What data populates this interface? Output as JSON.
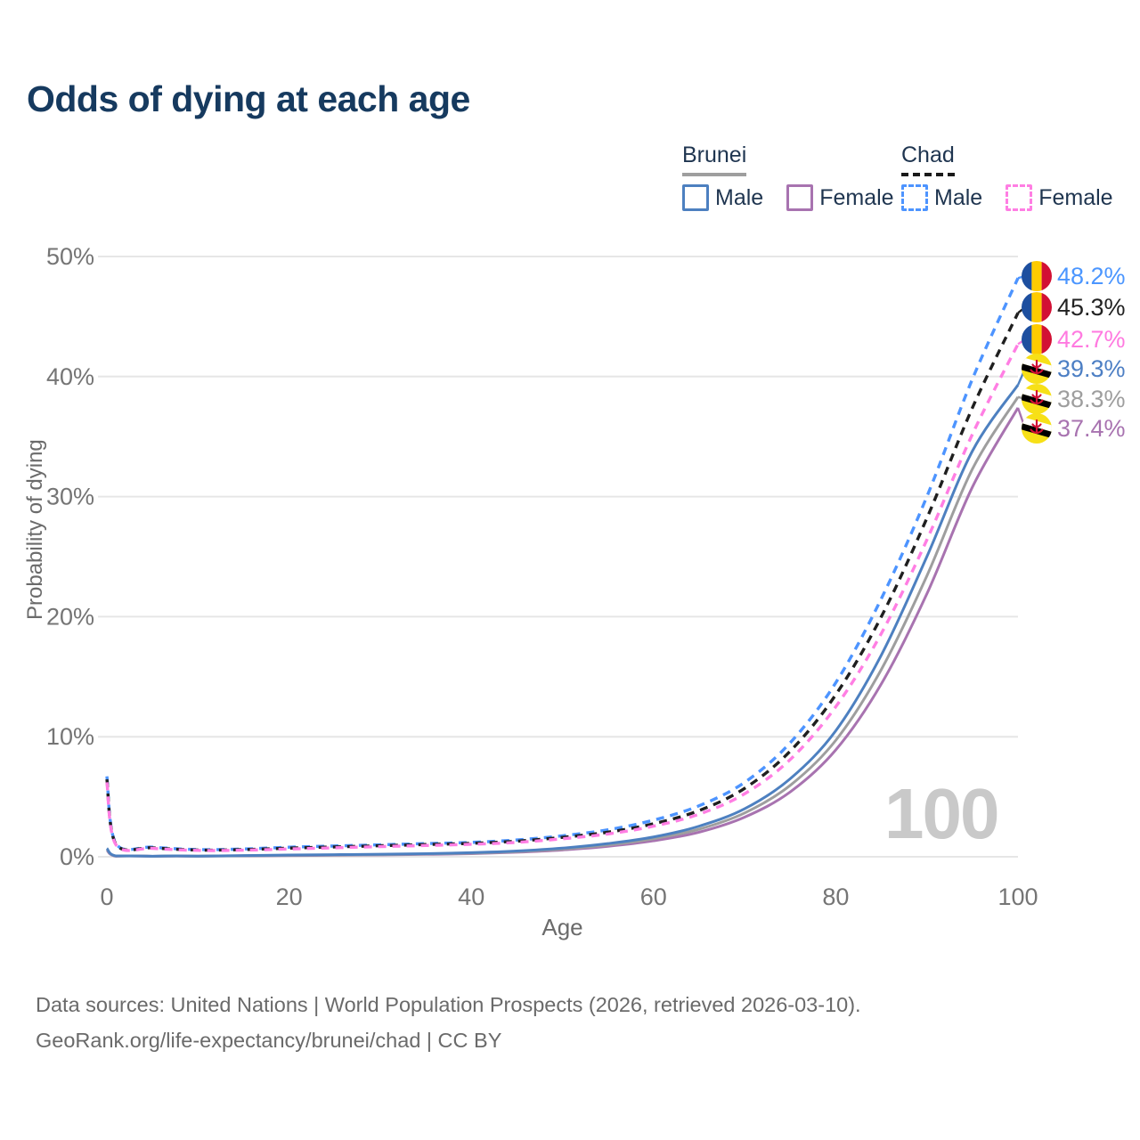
{
  "title": "Odds of dying at each age",
  "legend": {
    "brunei": {
      "name": "Brunei",
      "male": "Male",
      "female": "Female"
    },
    "chad": {
      "name": "Chad",
      "male": "Male",
      "female": "Female"
    }
  },
  "axes": {
    "x_label": "Age",
    "y_label": "Probability of dying",
    "x_ticks": [
      "0",
      "20",
      "40",
      "60",
      "80",
      "100"
    ],
    "y_ticks": [
      "0%",
      "10%",
      "20%",
      "30%",
      "40%",
      "50%"
    ]
  },
  "watermark": "100",
  "end_labels": [
    {
      "value": "48.2%",
      "country": "Chad",
      "series": "Chad Male",
      "color": "#4b96ff"
    },
    {
      "value": "45.3%",
      "country": "Chad",
      "series": "Chad Total",
      "color": "#222222"
    },
    {
      "value": "42.7%",
      "country": "Chad",
      "series": "Chad Female",
      "color": "#ff7ae0"
    },
    {
      "value": "39.3%",
      "country": "Brunei",
      "series": "Brunei Male",
      "color": "#4d7fc4"
    },
    {
      "value": "38.3%",
      "country": "Brunei",
      "series": "Brunei Total",
      "color": "#9e9e9e"
    },
    {
      "value": "37.4%",
      "country": "Brunei",
      "series": "Brunei Female",
      "color": "#a873b0"
    }
  ],
  "footer": {
    "line1": "Data sources: United Nations | World Population Prospects (2026, retrieved 2026-03-10).",
    "line2": "GeoRank.org/life-expectancy/brunei/chad | CC BY"
  },
  "chart_data": {
    "type": "line",
    "title": "Odds of dying at each age",
    "xlabel": "Age",
    "ylabel": "Probability of dying",
    "xlim": [
      0,
      100
    ],
    "ylim": [
      0,
      50
    ],
    "y_unit": "%",
    "grid": true,
    "legend_position": "top-right",
    "x": [
      0,
      1,
      5,
      10,
      15,
      20,
      25,
      30,
      35,
      40,
      45,
      50,
      55,
      60,
      65,
      70,
      75,
      80,
      85,
      90,
      95,
      100
    ],
    "series": [
      {
        "name": "Brunei Female",
        "country": "Brunei",
        "sex": "Female",
        "style": "solid",
        "color": "#a873b0",
        "end_label": "37.4%",
        "values": [
          0.55,
          0.05,
          0.04,
          0.05,
          0.07,
          0.1,
          0.13,
          0.16,
          0.2,
          0.26,
          0.38,
          0.57,
          0.87,
          1.33,
          2.05,
          3.3,
          5.4,
          8.9,
          14.4,
          21.9,
          30.8,
          37.4
        ]
      },
      {
        "name": "Brunei Total",
        "country": "Brunei",
        "sex": "Both",
        "style": "solid",
        "color": "#9e9e9e",
        "end_label": "38.3%",
        "values": [
          0.62,
          0.06,
          0.04,
          0.05,
          0.08,
          0.12,
          0.15,
          0.18,
          0.23,
          0.3,
          0.43,
          0.64,
          0.98,
          1.5,
          2.3,
          3.65,
          5.95,
          9.7,
          15.6,
          23.4,
          32.3,
          38.3
        ]
      },
      {
        "name": "Brunei Male",
        "country": "Brunei",
        "sex": "Male",
        "style": "solid",
        "color": "#4d80c0",
        "end_label": "39.3%",
        "values": [
          0.7,
          0.07,
          0.05,
          0.06,
          0.1,
          0.15,
          0.18,
          0.21,
          0.26,
          0.34,
          0.48,
          0.72,
          1.1,
          1.65,
          2.55,
          4.0,
          6.5,
          10.5,
          16.8,
          25.0,
          33.8,
          39.3
        ]
      },
      {
        "name": "Chad Male",
        "country": "Chad",
        "sex": "Male",
        "style": "dashed",
        "color": "#4d94ff",
        "end_label": "48.2%",
        "values": [
          6.7,
          1.1,
          0.8,
          0.6,
          0.65,
          0.8,
          0.9,
          1.0,
          1.1,
          1.2,
          1.4,
          1.75,
          2.25,
          3.05,
          4.25,
          6.2,
          9.5,
          14.5,
          21.5,
          30.0,
          39.8,
          48.2
        ]
      },
      {
        "name": "Chad Total",
        "country": "Chad",
        "sex": "Both",
        "style": "dashed",
        "color": "#1f1f1f",
        "end_label": "45.3%",
        "values": [
          6.45,
          1.05,
          0.75,
          0.56,
          0.6,
          0.72,
          0.82,
          0.92,
          1.02,
          1.12,
          1.3,
          1.62,
          2.05,
          2.75,
          3.85,
          5.7,
          8.8,
          13.5,
          20.0,
          28.2,
          37.4,
          45.3
        ]
      },
      {
        "name": "Chad Female",
        "country": "Chad",
        "sex": "Female",
        "style": "dashed",
        "color": "#ff7ee3",
        "end_label": "42.7%",
        "values": [
          6.2,
          1.0,
          0.7,
          0.53,
          0.55,
          0.65,
          0.75,
          0.85,
          0.94,
          1.04,
          1.2,
          1.5,
          1.9,
          2.55,
          3.55,
          5.25,
          8.1,
          12.5,
          18.6,
          26.4,
          35.2,
          42.7
        ]
      }
    ]
  }
}
